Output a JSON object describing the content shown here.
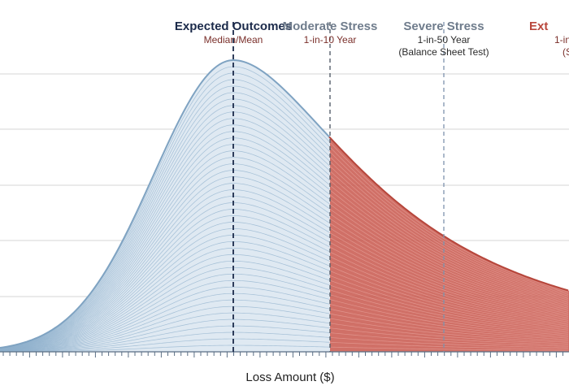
{
  "colors": {
    "expected": "#1b2a4a",
    "moderate": "#6f7c8c",
    "severe": "#6f7c8c",
    "extreme": "#b9473c",
    "subtext": "#7a2f2a",
    "severe_sub": "#2a2a2a",
    "curve_blue": "#8fb0cc",
    "curve_red": "#c8574c",
    "gridline": "#d6d6d6",
    "axis": "#5b6f85"
  },
  "chart_data": {
    "type": "area",
    "title": "",
    "xlabel": "Loss Amount ($)",
    "ylabel": "",
    "grid": true,
    "legend": "none",
    "distribution": "right-skewed loss distribution, stacked fan of density curves",
    "x_range": [
      0,
      1
    ],
    "peak_x": 0.41,
    "tail_shading_start_x": 0.58,
    "annotations": [
      {
        "key": "expected",
        "title": "Expected Outcomes",
        "subtitle": [
          "Median/Mean"
        ],
        "x": 0.41,
        "line_style": "dashed-dark"
      },
      {
        "key": "moderate",
        "title": "Moderate Stress",
        "subtitle": [
          "1-in-10 Year"
        ],
        "x": 0.58,
        "line_style": "dashed-gray"
      },
      {
        "key": "severe",
        "title": "Severe Stress",
        "subtitle": [
          "1-in-50 Year",
          "(Balance Sheet Test)"
        ],
        "x": 0.78,
        "line_style": "dashed-blue"
      },
      {
        "key": "extreme",
        "title": "Ext",
        "subtitle": [
          "1-in",
          "(S"
        ],
        "x": 0.99,
        "line_style": "none"
      }
    ]
  }
}
